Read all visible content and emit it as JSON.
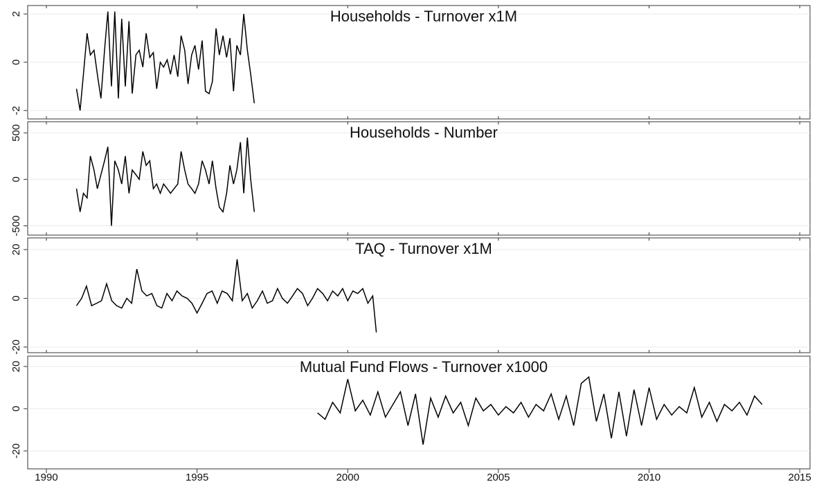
{
  "chart_data": [
    {
      "type": "line",
      "title": "Households - Turnover x1M",
      "color": "#000000",
      "grid": true,
      "x": [
        1991.0,
        1991.12,
        1991.23,
        1991.35,
        1991.46,
        1991.58,
        1991.69,
        1991.81,
        1991.93,
        1992.04,
        1992.16,
        1992.27,
        1992.39,
        1992.5,
        1992.62,
        1992.74,
        1992.85,
        1992.97,
        1993.08,
        1993.2,
        1993.31,
        1993.43,
        1993.55,
        1993.66,
        1993.78,
        1993.89,
        1994.01,
        1994.12,
        1994.24,
        1994.36,
        1994.47,
        1994.59,
        1994.7,
        1994.82,
        1994.93,
        1995.05,
        1995.17,
        1995.28,
        1995.4,
        1995.51,
        1995.63,
        1995.74,
        1995.86,
        1995.98,
        1996.09,
        1996.21,
        1996.32,
        1996.44,
        1996.55,
        1996.67,
        1996.78,
        1996.9
      ],
      "values": [
        -1.1,
        -2,
        -0.5,
        1.2,
        0.3,
        0.5,
        -0.5,
        -1.5,
        0.5,
        2.1,
        -1,
        2.1,
        -1.5,
        1.8,
        -1,
        1.7,
        -1.3,
        0.3,
        0.5,
        -0.2,
        1.2,
        0.2,
        0.4,
        -1.1,
        0,
        -0.2,
        0.1,
        -0.5,
        0.3,
        -0.6,
        1.1,
        0.5,
        -0.9,
        0.3,
        0.7,
        -0.3,
        0.9,
        -1.2,
        -1.3,
        -0.8,
        1.4,
        0.3,
        1.1,
        0.2,
        1,
        -1.2,
        0.7,
        0.3,
        2,
        0.5,
        -0.5,
        -1.7
      ],
      "xlim": [
        1989.38,
        2015.34
      ],
      "ylim": [
        -2.35,
        2.35
      ],
      "yticks": [
        -2,
        0,
        2
      ]
    },
    {
      "type": "line",
      "title": "Households - Number",
      "color": "#000000",
      "grid": true,
      "x": [
        1991.0,
        1991.12,
        1991.23,
        1991.35,
        1991.46,
        1991.58,
        1991.69,
        1991.81,
        1991.93,
        1992.04,
        1992.16,
        1992.27,
        1992.39,
        1992.5,
        1992.62,
        1992.74,
        1992.85,
        1992.97,
        1993.08,
        1993.2,
        1993.31,
        1993.43,
        1993.55,
        1993.66,
        1993.78,
        1993.89,
        1994.01,
        1994.12,
        1994.24,
        1994.36,
        1994.47,
        1994.59,
        1994.7,
        1994.82,
        1994.93,
        1995.05,
        1995.17,
        1995.28,
        1995.4,
        1995.51,
        1995.63,
        1995.74,
        1995.86,
        1995.98,
        1996.09,
        1996.21,
        1996.32,
        1996.44,
        1996.55,
        1996.67,
        1996.78,
        1996.9
      ],
      "values": [
        -100,
        -350,
        -150,
        -200,
        250,
        100,
        -100,
        50,
        200,
        350,
        -500,
        200,
        100,
        -50,
        250,
        -150,
        100,
        50,
        0,
        300,
        150,
        200,
        -100,
        -50,
        -150,
        -50,
        -100,
        -150,
        -100,
        -50,
        300,
        100,
        -50,
        -100,
        -150,
        -50,
        200,
        100,
        -50,
        200,
        -100,
        -300,
        -350,
        -150,
        150,
        -50,
        100,
        400,
        -150,
        450,
        0,
        -350
      ],
      "xlim": [
        1989.38,
        2015.34
      ],
      "ylim": [
        -600,
        620
      ],
      "yticks": [
        -500,
        0,
        500
      ]
    },
    {
      "type": "line",
      "title": "TAQ - Turnover x1M",
      "color": "#000000",
      "grid": true,
      "x": [
        1991.0,
        1991.17,
        1991.33,
        1991.5,
        1991.67,
        1991.83,
        1992.0,
        1992.17,
        1992.33,
        1992.5,
        1992.67,
        1992.83,
        1993.0,
        1993.17,
        1993.33,
        1993.5,
        1993.67,
        1993.83,
        1994.0,
        1994.17,
        1994.33,
        1994.5,
        1994.67,
        1994.83,
        1995.0,
        1995.17,
        1995.33,
        1995.5,
        1995.67,
        1995.83,
        1996.0,
        1996.17,
        1996.33,
        1996.5,
        1996.67,
        1996.83,
        1997.0,
        1997.17,
        1997.33,
        1997.5,
        1997.67,
        1997.83,
        1998.0,
        1998.17,
        1998.33,
        1998.5,
        1998.67,
        1998.83,
        1999.0,
        1999.17,
        1999.33,
        1999.5,
        1999.67,
        1999.83,
        2000.0,
        2000.17,
        2000.33,
        2000.5,
        2000.67,
        2000.83,
        2000.95
      ],
      "values": [
        -3,
        0,
        5,
        -3,
        -2,
        -1,
        6,
        -1,
        -3,
        -4,
        0,
        -2,
        12,
        3,
        1,
        2,
        -3,
        -4,
        2,
        -1,
        3,
        1,
        0,
        -2,
        -6,
        -2,
        2,
        3,
        -2,
        3,
        2,
        -1,
        16,
        -1,
        2,
        -4,
        -1,
        3,
        -2,
        -1,
        4,
        0,
        -2,
        1,
        4,
        2,
        -3,
        0,
        4,
        2,
        -1,
        3,
        1,
        4,
        -1,
        3,
        2,
        4,
        -2,
        1,
        -14
      ],
      "xlim": [
        1989.38,
        2015.34
      ],
      "ylim": [
        -22.3,
        24.8
      ],
      "yticks": [
        -20,
        0,
        20
      ]
    },
    {
      "type": "line",
      "title": "Mutual Fund Flows - Turnover x1000",
      "color": "#000000",
      "grid": true,
      "x": [
        1999.0,
        1999.25,
        1999.5,
        1999.75,
        2000.0,
        2000.25,
        2000.5,
        2000.75,
        2001.0,
        2001.25,
        2001.5,
        2001.75,
        2002.0,
        2002.25,
        2002.5,
        2002.75,
        2003.0,
        2003.25,
        2003.5,
        2003.75,
        2004.0,
        2004.25,
        2004.5,
        2004.75,
        2005.0,
        2005.25,
        2005.5,
        2005.75,
        2006.0,
        2006.25,
        2006.5,
        2006.75,
        2007.0,
        2007.25,
        2007.5,
        2007.75,
        2008.0,
        2008.25,
        2008.5,
        2008.75,
        2009.0,
        2009.25,
        2009.5,
        2009.75,
        2010.0,
        2010.25,
        2010.5,
        2010.75,
        2011.0,
        2011.25,
        2011.5,
        2011.75,
        2012.0,
        2012.25,
        2012.5,
        2012.75,
        2013.0,
        2013.25,
        2013.5,
        2013.75
      ],
      "values": [
        -2,
        -5,
        3,
        -2,
        14,
        -1,
        4,
        -3,
        8,
        -4,
        2,
        8,
        -8,
        7,
        -17,
        5,
        -4,
        6,
        -2,
        3,
        -8,
        5,
        -1,
        2,
        -3,
        1,
        -2,
        3,
        -4,
        2,
        -1,
        7,
        -5,
        6,
        -8,
        12,
        15,
        -6,
        7,
        -14,
        8,
        -13,
        9,
        -8,
        10,
        -5,
        2,
        -3,
        1,
        -2,
        10,
        -4,
        3,
        -6,
        2,
        -1,
        3,
        -3,
        6,
        2
      ],
      "xlim": [
        1989.38,
        2015.34
      ],
      "ylim": [
        -28.5,
        24.9
      ],
      "yticks": [
        -20,
        0,
        20
      ],
      "xticks": [
        1990,
        1995,
        2000,
        2005,
        2010,
        2015
      ]
    }
  ]
}
